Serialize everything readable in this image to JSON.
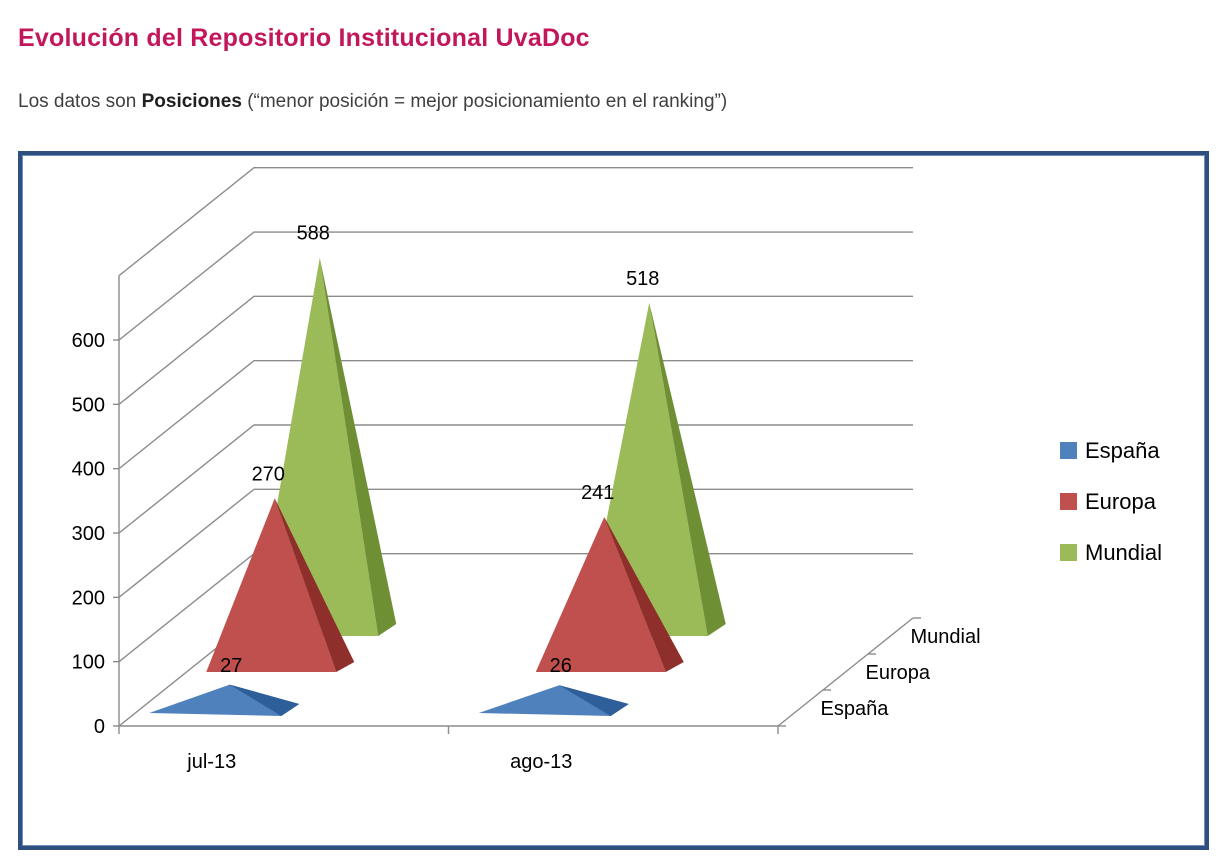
{
  "header": {
    "title": "Evolución del Repositorio Institucional UvaDoc",
    "subtitle_prefix": "Los datos son ",
    "subtitle_strong": "Posiciones",
    "subtitle_suffix": "  (“menor posición = mejor posicionamiento en el ranking”)"
  },
  "chart_data": {
    "type": "bar",
    "style": "3d-pyramid",
    "categories": [
      "jul-13",
      "ago-13"
    ],
    "series": [
      {
        "name": "España",
        "values": [
          27,
          26
        ],
        "color": "#4f81bd",
        "shade": "#2f5f9b"
      },
      {
        "name": "Europa",
        "values": [
          270,
          241
        ],
        "color": "#c0504d",
        "shade": "#8e2f2c"
      },
      {
        "name": "Mundial",
        "values": [
          588,
          518
        ],
        "color": "#9bbb59",
        "shade": "#6f8f35"
      }
    ],
    "data_labels": [
      [
        "27",
        "26"
      ],
      [
        "270",
        "241"
      ],
      [
        "588",
        "518"
      ]
    ],
    "y_ticks": [
      "0",
      "100",
      "200",
      "300",
      "400",
      "500",
      "600"
    ],
    "ylim": [
      0,
      700
    ],
    "depth_labels": [
      "España",
      "Europa",
      "Mundial"
    ],
    "legend": [
      "España",
      "Europa",
      "Mundial"
    ],
    "legend_position": "right",
    "grid": true
  }
}
